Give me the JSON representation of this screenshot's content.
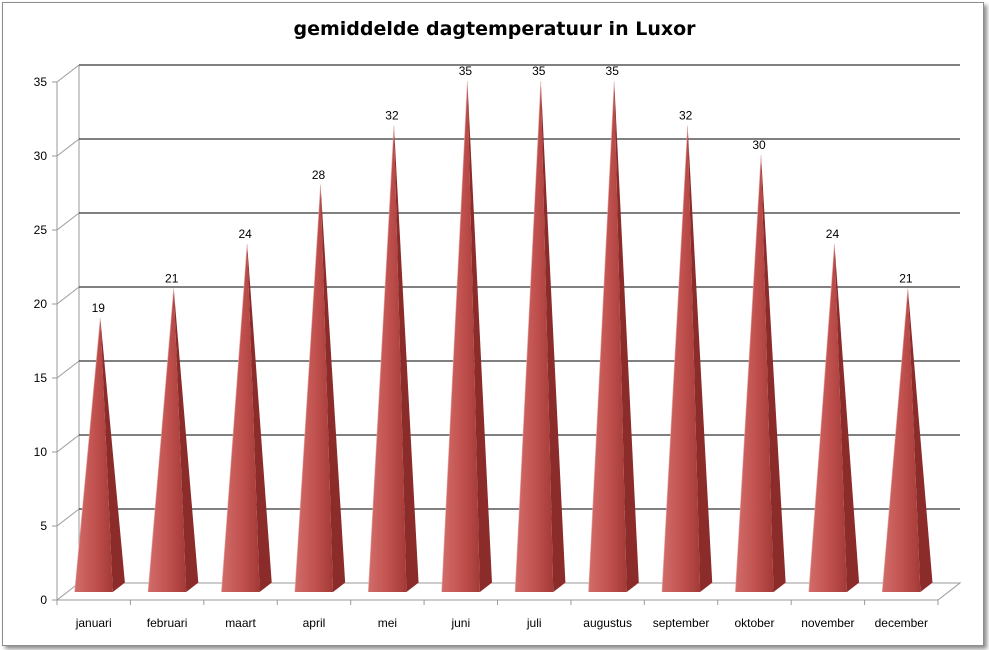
{
  "chart_data": {
    "type": "bar",
    "style": "3d-pyramid",
    "title": "gemiddelde dagtemperatuur in Luxor",
    "categories": [
      "januari",
      "februari",
      "maart",
      "april",
      "mei",
      "juni",
      "juli",
      "augustus",
      "september",
      "oktober",
      "november",
      "december"
    ],
    "values": [
      19,
      21,
      24,
      28,
      32,
      35,
      35,
      35,
      32,
      30,
      24,
      21
    ],
    "ylim": [
      0,
      35
    ],
    "yticks": [
      0,
      5,
      10,
      15,
      20,
      25,
      30,
      35
    ],
    "grid": true,
    "legend": "none",
    "data_labels": true,
    "colors": {
      "bar": "#c0504d",
      "bar_shade": "#8b2b2a",
      "bar_light": "#e3a5a3",
      "grid": "#000000",
      "back_wall": "#ffffff"
    }
  }
}
